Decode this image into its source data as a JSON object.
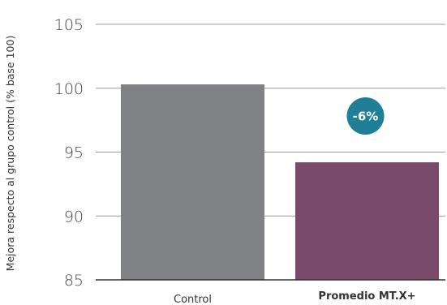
{
  "chart_data": {
    "type": "bar",
    "ylabel": "Mejora respecto al grupo control (% base 100)",
    "ylim": [
      85,
      105
    ],
    "yticks": [
      85,
      90,
      95,
      100,
      105
    ],
    "grid": true,
    "categories": [
      "Control",
      "Promedio MT.X+"
    ],
    "category_bold": [
      false,
      true
    ],
    "values": [
      100.3,
      94.2
    ],
    "bar_colors": [
      "#808184",
      "#7a4a6b"
    ],
    "annotation": {
      "text": "-6%",
      "color": "#1f7f97",
      "category": "Promedio MT.X+"
    }
  }
}
